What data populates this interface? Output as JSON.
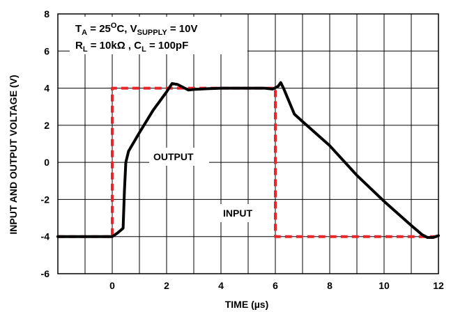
{
  "chart_data": {
    "type": "line",
    "xlabel": {
      "prefix": "TIME (",
      "unit": "µs",
      "suffix": ")"
    },
    "ylabel": "INPUT AND OUTPUT VOLTAGE (V)",
    "xlim": [
      -2,
      12
    ],
    "ylim": [
      -6,
      8
    ],
    "x_ticks": [
      0,
      2,
      4,
      6,
      8,
      10,
      12
    ],
    "y_ticks": [
      -6,
      -4,
      -2,
      0,
      2,
      4,
      6,
      8
    ],
    "grid": true,
    "conditions": {
      "line1": {
        "t": "T",
        "t_sub": "A",
        "temp": " = 25",
        "temp_sup": "O",
        "temp_unit": "C, V",
        "v_sub": "SUPPLY",
        "v_val": " = 10V"
      },
      "line2": {
        "r": "R",
        "r_sub": "L",
        "r_val": " = 10kΩ , C",
        "c_sub": "L",
        "c_val": " = 100pF"
      }
    },
    "series": [
      {
        "name": "INPUT",
        "color": "#e8262a",
        "style": "dashed",
        "x": [
          -2,
          0,
          0,
          6,
          6,
          12
        ],
        "y": [
          -4,
          -4,
          4,
          4,
          -4,
          -4
        ]
      },
      {
        "name": "OUTPUT",
        "color": "#000000",
        "style": "solid",
        "x": [
          -2,
          0,
          0.2,
          0.4,
          0.45,
          0.5,
          0.6,
          1.0,
          1.5,
          2.0,
          2.2,
          2.4,
          2.6,
          2.8,
          3.0,
          3.5,
          4.0,
          5.0,
          5.6,
          5.9,
          6.1,
          6.2,
          6.3,
          6.7,
          7.0,
          8.0,
          9.0,
          10.0,
          11.0,
          11.4,
          11.6,
          11.8,
          12
        ],
        "y": [
          -4,
          -4,
          -3.8,
          -3.55,
          -1.5,
          0.0,
          0.6,
          1.6,
          2.8,
          3.8,
          4.25,
          4.2,
          4.05,
          3.9,
          3.93,
          3.97,
          4.0,
          4.0,
          4.0,
          3.95,
          4.1,
          4.3,
          4.0,
          2.6,
          2.2,
          0.9,
          -0.7,
          -2.1,
          -3.4,
          -3.9,
          -4.05,
          -4.05,
          -3.95
        ]
      }
    ],
    "annotations": {
      "output_label": "OUTPUT",
      "input_label": "INPUT"
    }
  }
}
